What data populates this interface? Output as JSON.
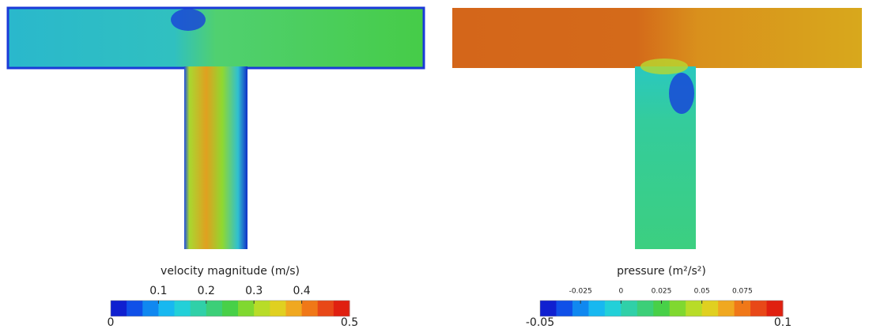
{
  "chart_data": [
    {
      "type": "contour",
      "colorbar_title": "velocity magnitude (m/s)",
      "clim": [
        0,
        0.5
      ],
      "ticks": [
        0.1,
        0.2,
        0.3,
        0.4
      ],
      "colormap": [
        "#1020d0",
        "#1050e8",
        "#1088f0",
        "#18b8f0",
        "#22d0d8",
        "#30d0a8",
        "#3ccf78",
        "#48d048",
        "#80d830",
        "#b8dc28",
        "#e0d020",
        "#f0a820",
        "#f07818",
        "#e84818",
        "#e02010"
      ]
    },
    {
      "type": "contour",
      "colorbar_title": "pressure (m²/s²)",
      "clim": [
        -0.05,
        0.1
      ],
      "ticks": [
        -0.025,
        0,
        0.025,
        0.05,
        0.075
      ],
      "colormap": [
        "#1020d0",
        "#1050e8",
        "#1088f0",
        "#18b8f0",
        "#22d0d8",
        "#30d0a8",
        "#3ccf78",
        "#48d048",
        "#80d830",
        "#b8dc28",
        "#e0d020",
        "#f0a820",
        "#f07818",
        "#e84818",
        "#e02010"
      ]
    }
  ]
}
